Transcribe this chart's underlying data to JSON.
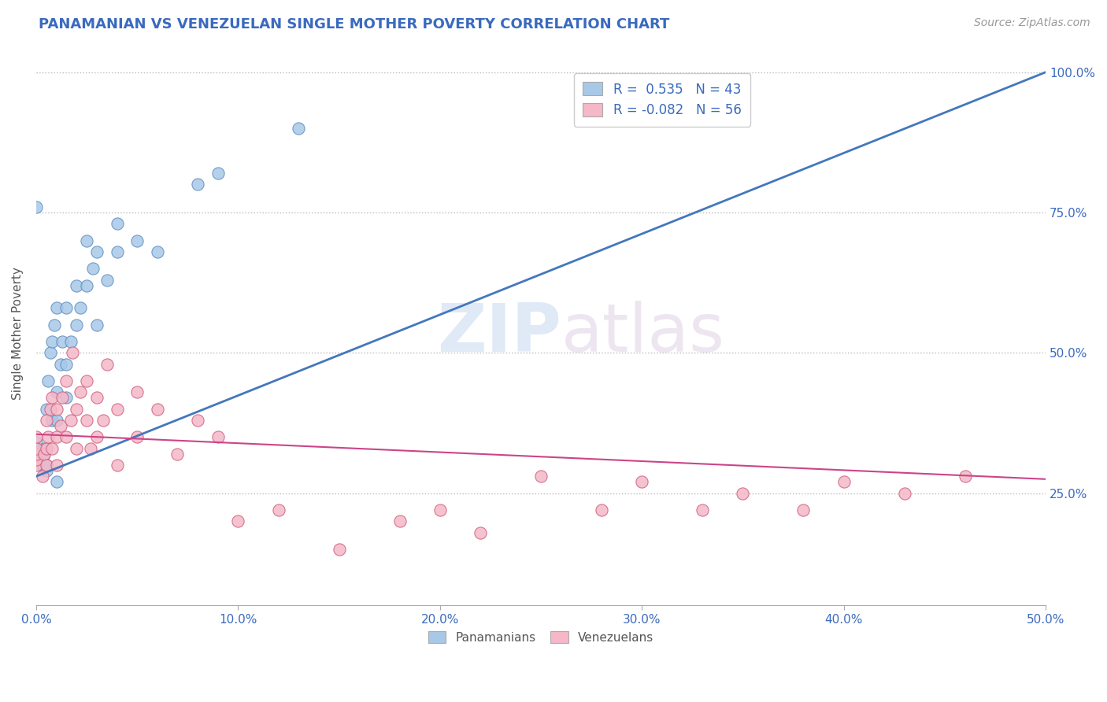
{
  "title": "PANAMANIAN VS VENEZUELAN SINGLE MOTHER POVERTY CORRELATION CHART",
  "source_text": "Source: ZipAtlas.com",
  "ylabel": "Single Mother Poverty",
  "xmin": 0.0,
  "xmax": 0.5,
  "ymin": 0.05,
  "ymax": 1.02,
  "xtick_labels": [
    "0.0%",
    "10.0%",
    "20.0%",
    "30.0%",
    "40.0%",
    "50.0%"
  ],
  "xtick_vals": [
    0.0,
    0.1,
    0.2,
    0.3,
    0.4,
    0.5
  ],
  "ytick_labels": [
    "25.0%",
    "50.0%",
    "75.0%",
    "100.0%"
  ],
  "ytick_vals": [
    0.25,
    0.5,
    0.75,
    1.0
  ],
  "legend_blue_label": "R =  0.535   N = 43",
  "legend_pink_label": "R = -0.082   N = 56",
  "legend_bottom_blue": "Panamanians",
  "legend_bottom_pink": "Venezuelans",
  "blue_color": "#a8c8e8",
  "pink_color": "#f4b8c8",
  "blue_edge_color": "#6090c0",
  "pink_edge_color": "#d06080",
  "blue_line_color": "#4477bb",
  "pink_line_color": "#cc4488",
  "watermark_zip": "ZIP",
  "watermark_atlas": "atlas",
  "pan_scatter_x": [
    0.0,
    0.0,
    0.0,
    0.0,
    0.0,
    0.003,
    0.003,
    0.004,
    0.004,
    0.005,
    0.005,
    0.005,
    0.006,
    0.007,
    0.008,
    0.008,
    0.009,
    0.01,
    0.01,
    0.01,
    0.01,
    0.012,
    0.013,
    0.015,
    0.015,
    0.015,
    0.017,
    0.02,
    0.02,
    0.022,
    0.025,
    0.025,
    0.028,
    0.03,
    0.03,
    0.035,
    0.04,
    0.04,
    0.05,
    0.06,
    0.08,
    0.09,
    0.13
  ],
  "pan_scatter_y": [
    0.31,
    0.32,
    0.33,
    0.34,
    0.76,
    0.3,
    0.31,
    0.32,
    0.33,
    0.29,
    0.3,
    0.4,
    0.45,
    0.5,
    0.38,
    0.52,
    0.55,
    0.27,
    0.38,
    0.43,
    0.58,
    0.48,
    0.52,
    0.42,
    0.48,
    0.58,
    0.52,
    0.55,
    0.62,
    0.58,
    0.62,
    0.7,
    0.65,
    0.55,
    0.68,
    0.63,
    0.68,
    0.73,
    0.7,
    0.68,
    0.8,
    0.82,
    0.9
  ],
  "ven_scatter_x": [
    0.0,
    0.0,
    0.0,
    0.0,
    0.0,
    0.003,
    0.004,
    0.005,
    0.005,
    0.005,
    0.006,
    0.007,
    0.008,
    0.008,
    0.01,
    0.01,
    0.01,
    0.012,
    0.013,
    0.015,
    0.015,
    0.017,
    0.018,
    0.02,
    0.02,
    0.022,
    0.025,
    0.025,
    0.027,
    0.03,
    0.03,
    0.033,
    0.035,
    0.04,
    0.04,
    0.05,
    0.05,
    0.06,
    0.07,
    0.08,
    0.09,
    0.1,
    0.12,
    0.15,
    0.18,
    0.2,
    0.22,
    0.25,
    0.28,
    0.3,
    0.33,
    0.35,
    0.38,
    0.4,
    0.43,
    0.46
  ],
  "ven_scatter_y": [
    0.3,
    0.31,
    0.32,
    0.33,
    0.35,
    0.28,
    0.32,
    0.3,
    0.33,
    0.38,
    0.35,
    0.4,
    0.33,
    0.42,
    0.3,
    0.35,
    0.4,
    0.37,
    0.42,
    0.35,
    0.45,
    0.38,
    0.5,
    0.33,
    0.4,
    0.43,
    0.38,
    0.45,
    0.33,
    0.35,
    0.42,
    0.38,
    0.48,
    0.4,
    0.3,
    0.35,
    0.43,
    0.4,
    0.32,
    0.38,
    0.35,
    0.2,
    0.22,
    0.15,
    0.2,
    0.22,
    0.18,
    0.28,
    0.22,
    0.27,
    0.22,
    0.25,
    0.22,
    0.27,
    0.25,
    0.28
  ],
  "blue_trendline_x": [
    0.0,
    0.5
  ],
  "blue_trendline_y": [
    0.28,
    1.0
  ],
  "pink_trendline_x": [
    0.0,
    0.5
  ],
  "pink_trendline_y": [
    0.355,
    0.275
  ]
}
